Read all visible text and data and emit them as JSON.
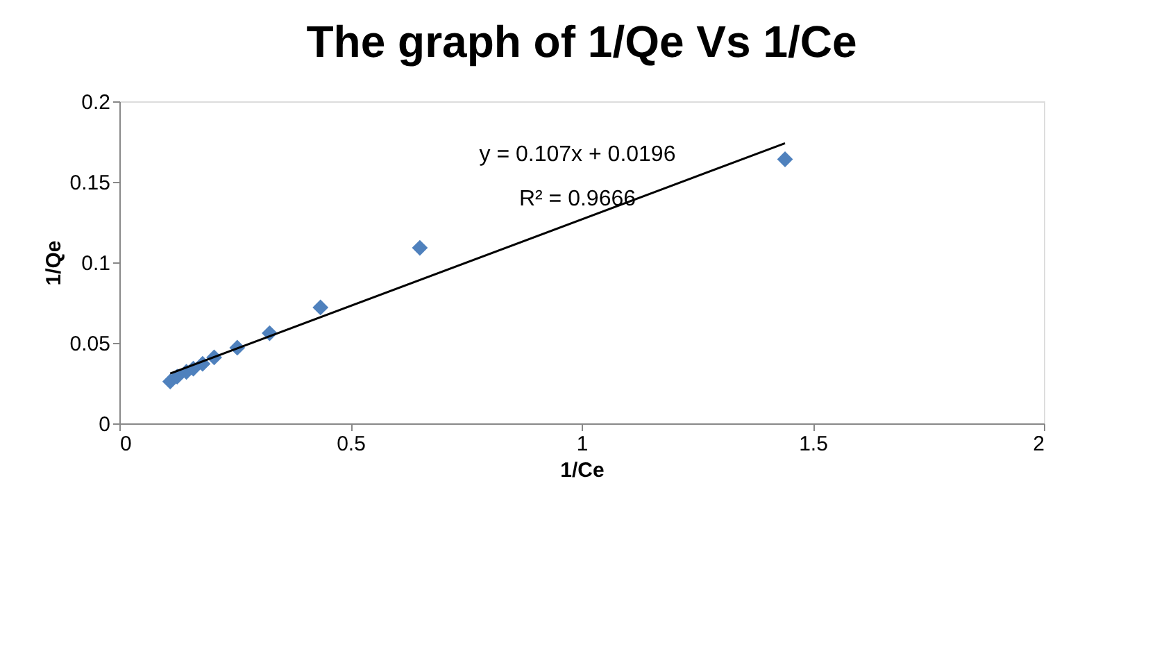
{
  "chart_data": {
    "type": "scatter",
    "title": "The graph of 1/Qe Vs 1/Ce",
    "xlabel": "1/Ce",
    "ylabel": "1/Qe",
    "series": [
      {
        "type": "scatter",
        "color": "#4f81bd",
        "marker": "diamond",
        "x": [
          0.11,
          0.125,
          0.145,
          0.16,
          0.18,
          0.205,
          0.255,
          0.325,
          0.435,
          0.65,
          1.44
        ],
        "values": [
          0.026,
          0.029,
          0.032,
          0.034,
          0.037,
          0.041,
          0.047,
          0.056,
          0.072,
          0.109,
          0.164
        ]
      },
      {
        "type": "line",
        "color": "#000000",
        "x": [
          0.11,
          1.44
        ],
        "values": [
          0.031,
          0.174
        ]
      }
    ],
    "annotations": [
      "y = 0.107x + 0.0196",
      "R² = 0.9666"
    ],
    "xlim": [
      0,
      2
    ],
    "xticks": [
      0,
      0.5,
      1,
      1.5,
      2
    ],
    "ylim": [
      0,
      0.2
    ],
    "yticks": [
      0,
      0.05,
      0.1,
      0.15,
      0.2
    ],
    "grid": false,
    "legend": false
  }
}
